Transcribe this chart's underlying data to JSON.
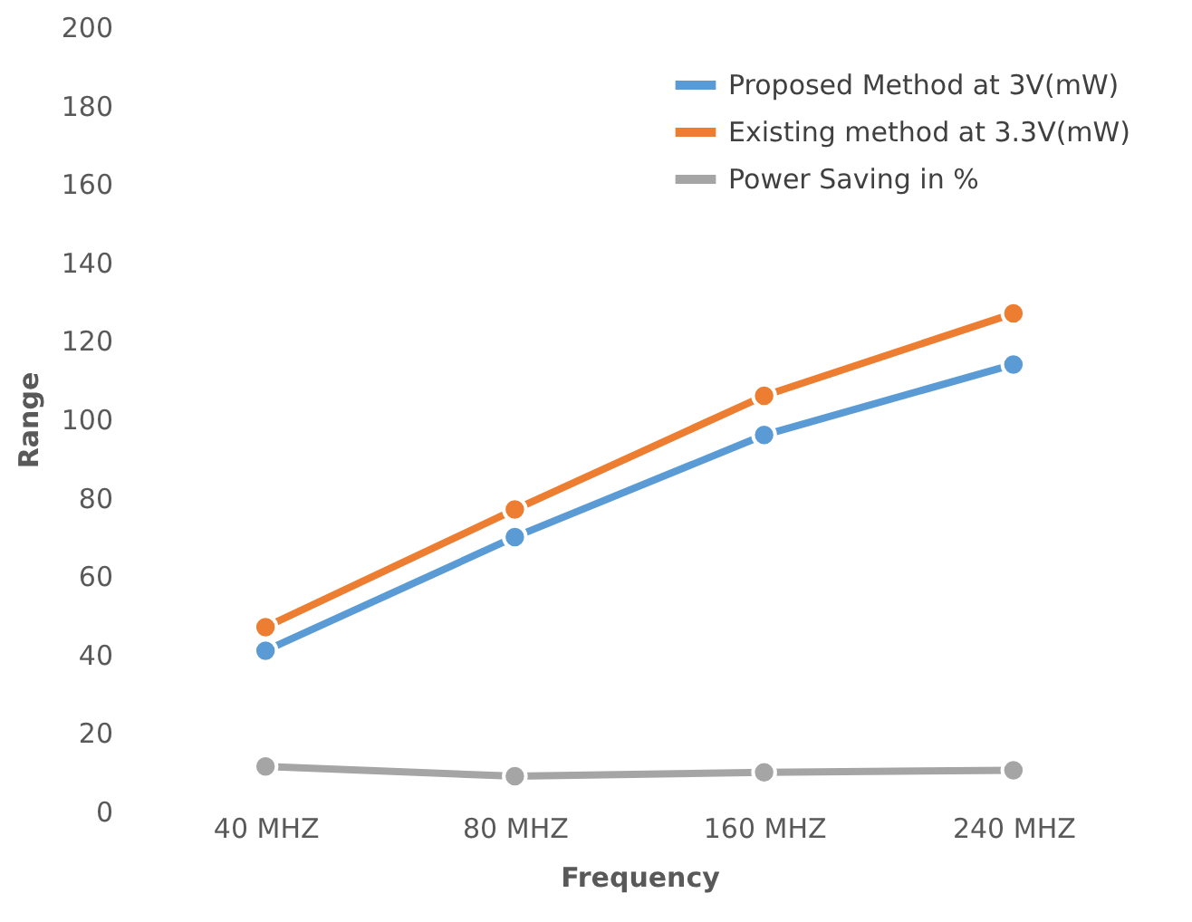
{
  "chart_data": {
    "type": "line",
    "xlabel": "Frequency",
    "ylabel": "Range",
    "categories": [
      "40 MHZ",
      "80 MHZ",
      "160 MHZ",
      "240 MHZ"
    ],
    "series": [
      {
        "name": "Proposed Method at 3V(mW)",
        "color": "#5b9bd5",
        "values": [
          41,
          70,
          96,
          114
        ]
      },
      {
        "name": "Existing method at 3.3V(mW)",
        "color": "#ed7d31",
        "values": [
          47,
          77,
          106,
          127
        ]
      },
      {
        "name": "Power Saving in %",
        "color": "#a5a5a5",
        "values": [
          11.5,
          9,
          10,
          10.5
        ]
      }
    ],
    "ylim": [
      0,
      200
    ],
    "yticks": [
      0,
      20,
      40,
      60,
      80,
      100,
      120,
      140,
      160,
      180,
      200
    ],
    "grid": false,
    "legend": "top right",
    "marker": "circle",
    "line_style": "solid"
  }
}
